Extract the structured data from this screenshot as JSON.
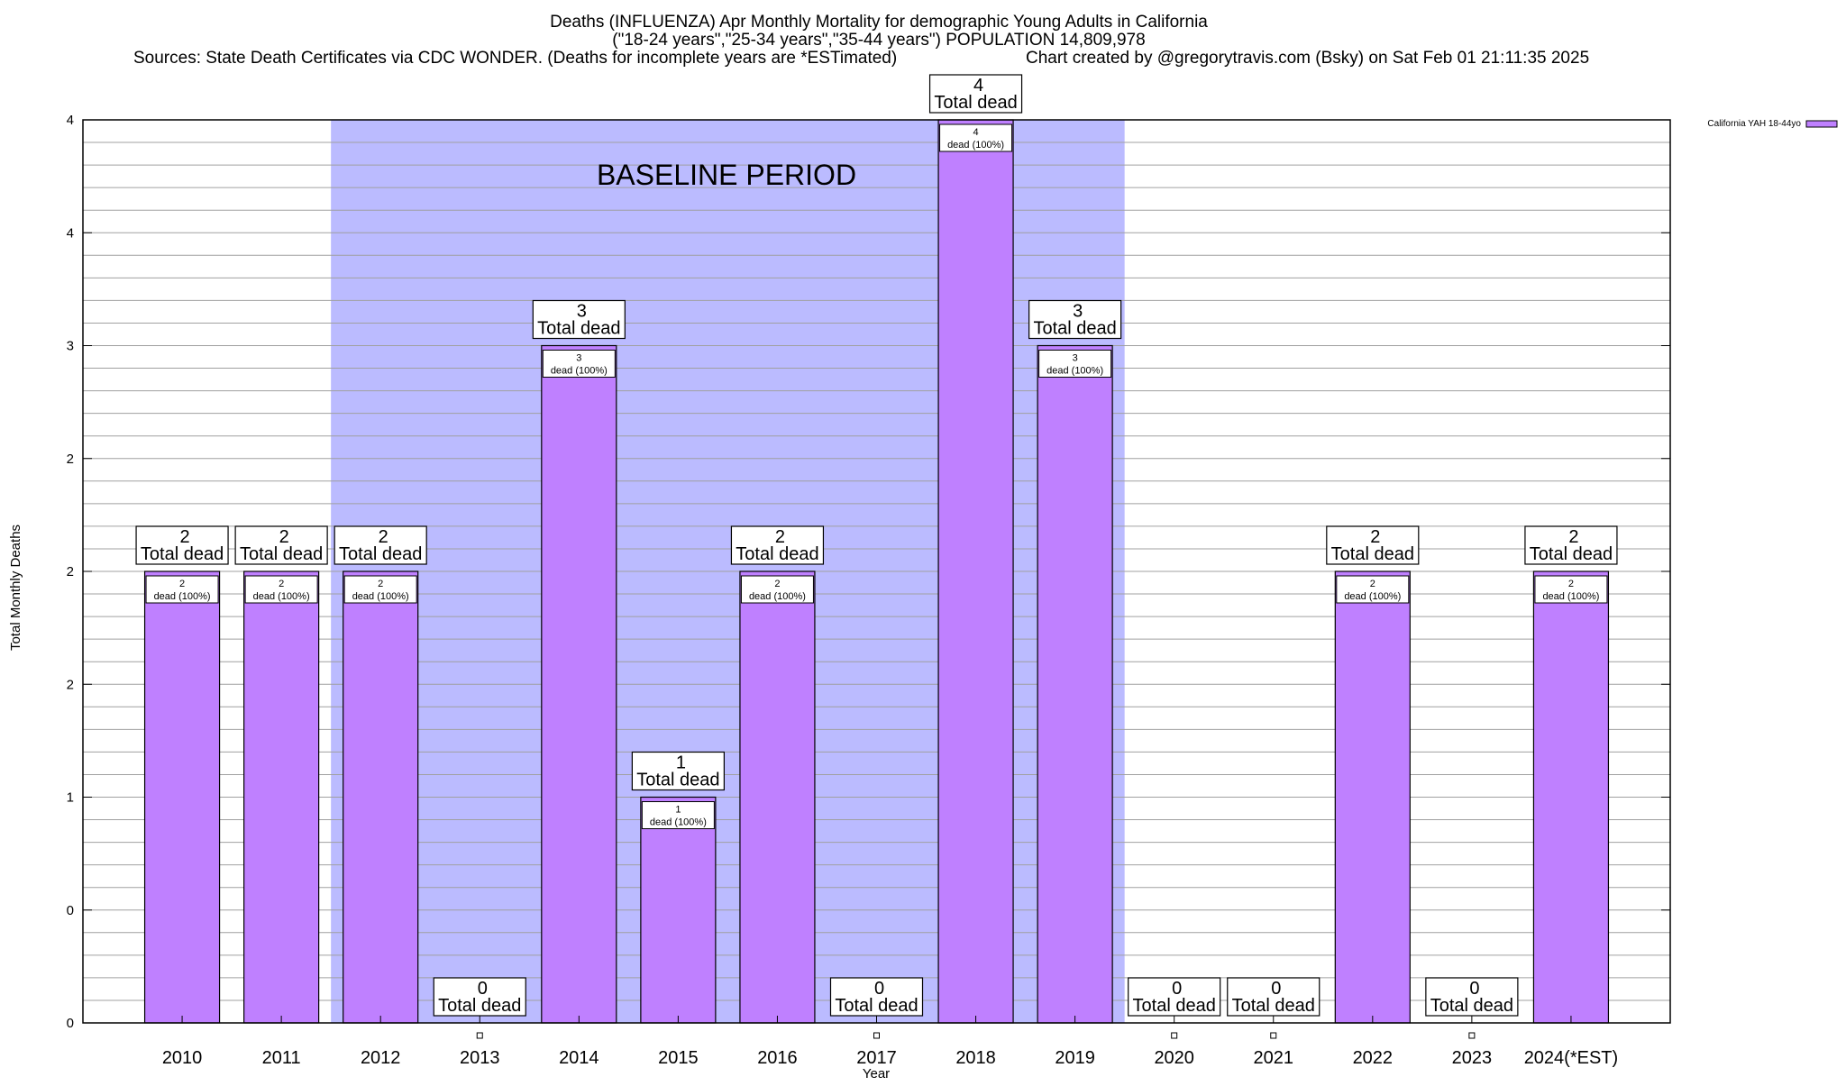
{
  "chart_data": {
    "type": "bar",
    "title_lines": [
      "Deaths (INFLUENZA) Apr Monthly Mortality for demographic Young Adults in California",
      "(\"18-24 years\",\"25-34 years\",\"35-44 years\") POPULATION 14,809,978"
    ],
    "sources": "Sources: State Death Certificates via CDC WONDER. (Deaths for incomplete years are *ESTimated)",
    "credit": "Chart created by @gregorytravis.com (Bsky) on Sat Feb 01 21:11:35 2025",
    "xlabel": "Year",
    "ylabel": "Total Monthly Deaths",
    "categories": [
      "2010",
      "2011",
      "2012",
      "2013",
      "2014",
      "2015",
      "2016",
      "2017",
      "2018",
      "2019",
      "2020",
      "2021",
      "2022",
      "2023",
      "2024(*EST)"
    ],
    "series": [
      {
        "name": "California YAH 18-44yo",
        "color": "#bf80ff",
        "values": [
          2,
          2,
          2,
          0,
          3,
          1,
          2,
          0,
          4,
          3,
          0,
          0,
          2,
          0,
          2
        ]
      }
    ],
    "total_label_suffix": "Total dead",
    "bar_label_suffix": "dead (100%)",
    "ylim": [
      0,
      4
    ],
    "y_tick_values": [
      0,
      0.5,
      1,
      1.5,
      2,
      2.5,
      3,
      3.5,
      4
    ],
    "y_tick_labels": [
      "0",
      "0",
      "1",
      "2",
      "2",
      "2",
      "3",
      "4",
      "4"
    ],
    "grid": true,
    "legend_position": "top-right",
    "baseline": {
      "label": "BASELINE PERIOD",
      "from": "2012",
      "to": "2019",
      "color": "#bbbbff"
    },
    "colors": {
      "bar": "#bf80ff",
      "baseline_band": "#bbbbff",
      "grid": "#a0a0a0"
    }
  }
}
